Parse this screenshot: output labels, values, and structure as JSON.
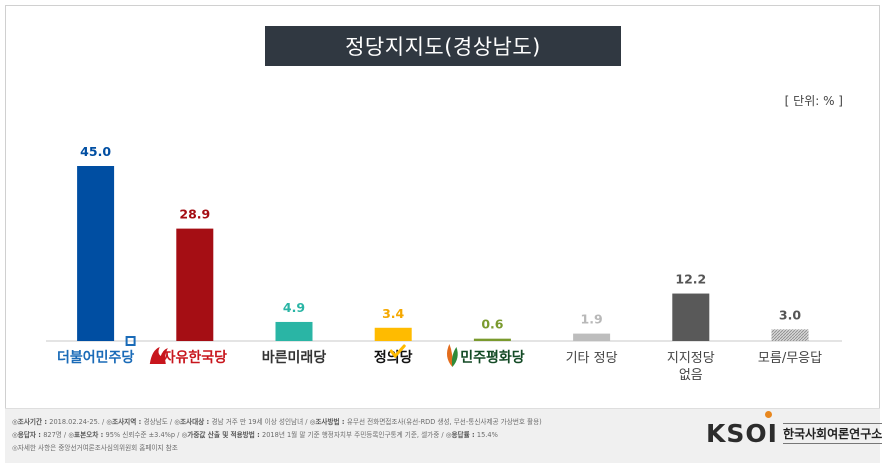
{
  "title": "정당지지도(경상남도)",
  "unit_label": "[ 단위: % ]",
  "chart_data": {
    "type": "bar",
    "title": "정당지지도(경상남도)",
    "xlabel": "",
    "ylabel": "",
    "unit": "%",
    "ylim": [
      0,
      45
    ],
    "grid": false,
    "categories": [
      "더불어민주당",
      "자유한국당",
      "바른미래당",
      "정의당",
      "민주평화당",
      "기타 정당",
      "지지정당 없음",
      "모름/무응답"
    ],
    "values": [
      45.0,
      28.9,
      4.9,
      3.4,
      0.6,
      1.9,
      12.2,
      3.0
    ],
    "value_labels": [
      "45.0",
      "28.9",
      "4.9",
      "3.4",
      "0.6",
      "1.9",
      "12.2",
      "3.0"
    ],
    "colors": [
      "#004ea2",
      "#a50e14",
      "#2ab5a5",
      "#ffbb00",
      "#7a9a2e",
      "#bdbdbd",
      "#595959",
      "#bdbdbd"
    ],
    "label_colors": [
      "#004ea2",
      "#a50e14",
      "#2ab5a5",
      "#f5a800",
      "#7a9a2e",
      "#b8b8b8",
      "#555555",
      "#555555"
    ],
    "category_lines": [
      [
        "더불어민주당"
      ],
      [
        "자유한국당"
      ],
      [
        "바른미래당"
      ],
      [
        "정의당"
      ],
      [
        "민주평화당"
      ],
      [
        "기타 정당"
      ],
      [
        "지지정당",
        "없음"
      ],
      [
        "모름/무응답"
      ]
    ],
    "category_colors": [
      "#1a6bb8",
      "#c8161d",
      "#333333",
      "#111111",
      "#134a25",
      "#444444",
      "#444444",
      "#444444"
    ],
    "category_styles": [
      "logo",
      "logo",
      "logo",
      "logo",
      "logo",
      "text",
      "text",
      "text"
    ],
    "category_icons": [
      "blue-square-icon",
      "torch-icon",
      "",
      "check-icon",
      "leaf-icon",
      "",
      "",
      ""
    ],
    "hatched": [
      false,
      false,
      false,
      false,
      false,
      false,
      false,
      true
    ]
  },
  "footer": {
    "lines": [
      [
        {
          "b": "◎조사기간 : ",
          "t": "2018.02.24-25.  /  "
        },
        {
          "b": "◎조사지역 : ",
          "t": "경상남도 /  "
        },
        {
          "b": "◎조사대상 : ",
          "t": "경남 거주 만 19세 이상 성인남녀 /  "
        },
        {
          "b": "◎조사방법 : ",
          "t": "유무선 전화면접조사(유선-RDD 생성, 무선-통신사제공 가상번호 활용)"
        }
      ],
      [
        {
          "b": "◎응답자 : ",
          "t": "827명  /  "
        },
        {
          "b": "◎표본오차 : ",
          "t": "95%  신뢰수준 ±3.4%p  /  "
        },
        {
          "b": "◎가중값 산출 및 적용방법 : ",
          "t": "2018년 1월 말 기준 행정자치부 주민등록인구통계 기준, 셀가중 / "
        },
        {
          "b": "◎응답률 : ",
          "t": "15.4%"
        }
      ],
      [
        {
          "b": "",
          "t": "◎자세한 사항은 중앙선거여론조사심의위원회 홈페이지 참조"
        }
      ]
    ]
  },
  "logo": {
    "mark": "KSOI",
    "text": "한국사회여론연구소"
  }
}
